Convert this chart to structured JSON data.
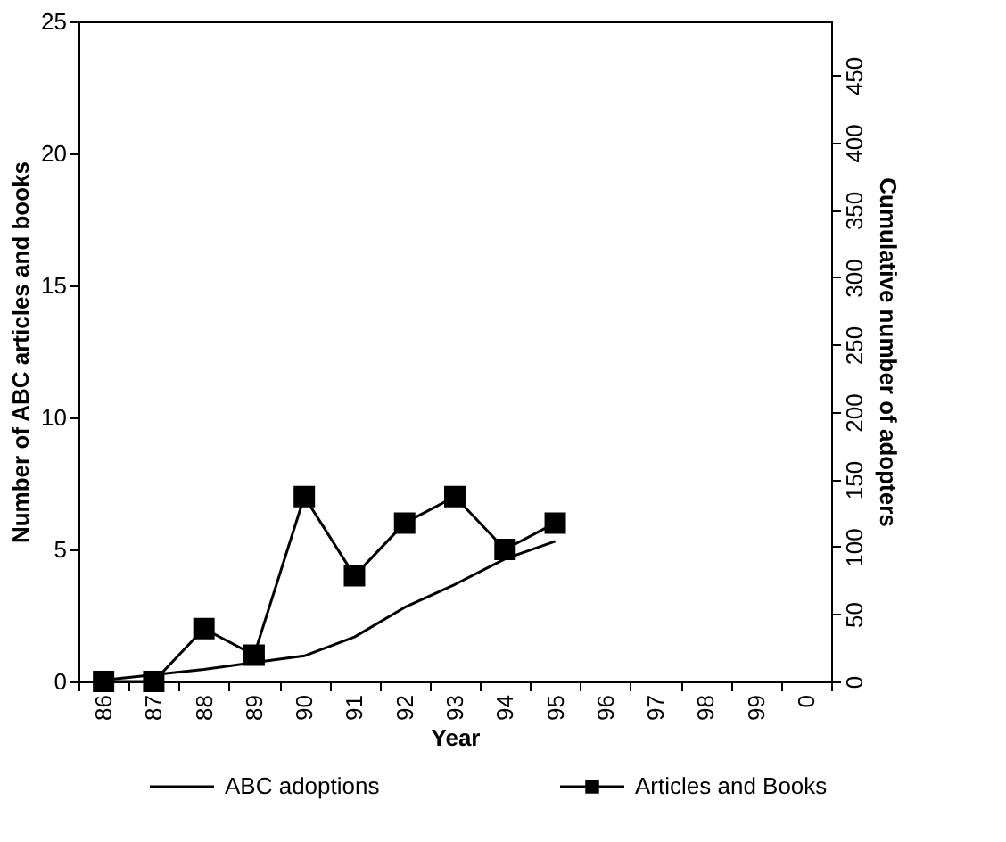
{
  "chart_data": {
    "type": "line",
    "xlabel": "Year",
    "ylabel": "Number of ABC articles and books",
    "y2label": "Cumulative number of adopters",
    "categories": [
      "86",
      "87",
      "88",
      "89",
      "90",
      "91",
      "92",
      "93",
      "94",
      "95",
      "96",
      "97",
      "98",
      "99",
      "0"
    ],
    "series": [
      {
        "name": "ABC adoptions",
        "color": "#000000",
        "axis": "y2",
        "marker": "none",
        "values": [
          1,
          5,
          9,
          14,
          19,
          33,
          55,
          72,
          91,
          104,
          null,
          null,
          null,
          null,
          null
        ]
      },
      {
        "name": "Articles and Books",
        "color": "#000000",
        "marker": "square",
        "values": [
          0,
          0,
          2,
          1,
          7,
          4,
          6,
          7,
          5,
          6,
          null,
          null,
          null,
          null,
          null
        ]
      }
    ],
    "ylim": [
      0,
      25
    ],
    "yticks": [
      0,
      5,
      10,
      15,
      20,
      25
    ],
    "y2lim": [
      0,
      490
    ],
    "y2ticks": [
      0,
      50,
      100,
      150,
      200,
      250,
      300,
      350,
      400,
      450
    ],
    "grid": false,
    "legend": "bottom",
    "line_style": "solid"
  }
}
